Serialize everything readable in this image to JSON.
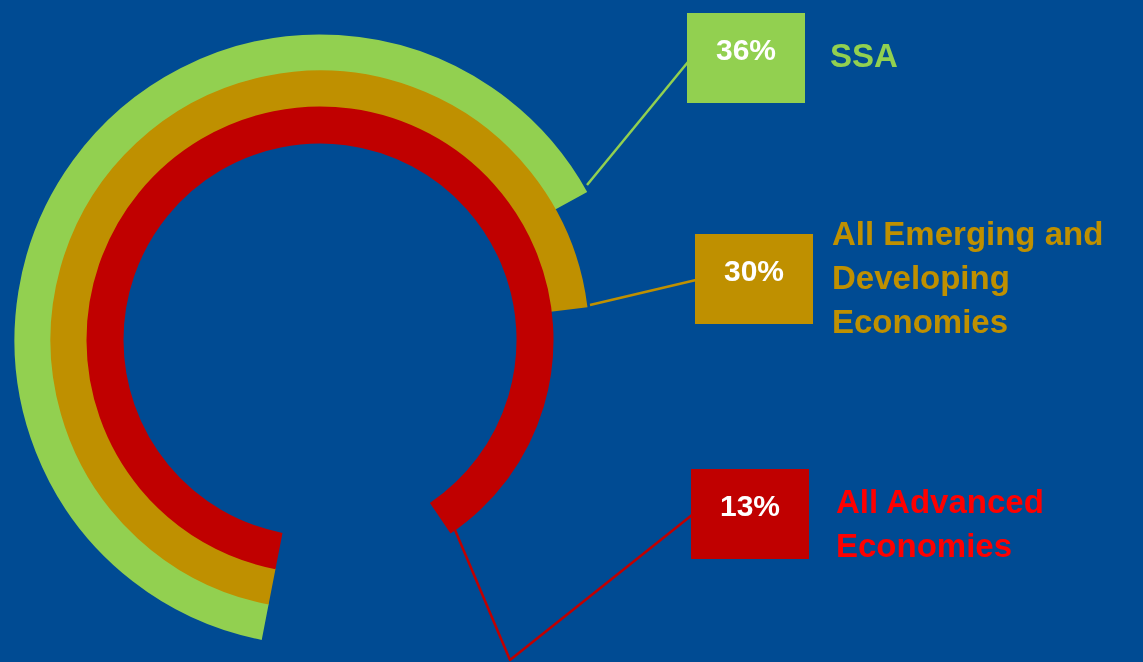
{
  "chart_data": {
    "type": "other",
    "categories": [
      "SSA",
      "All Emerging and Developing Economies",
      "All Advanced Economies"
    ],
    "values": [
      36,
      30,
      13
    ],
    "value_labels": [
      "36%",
      "30%",
      "13%"
    ],
    "colors": [
      "#92d050",
      "#bf9000",
      "#c00000"
    ]
  }
}
